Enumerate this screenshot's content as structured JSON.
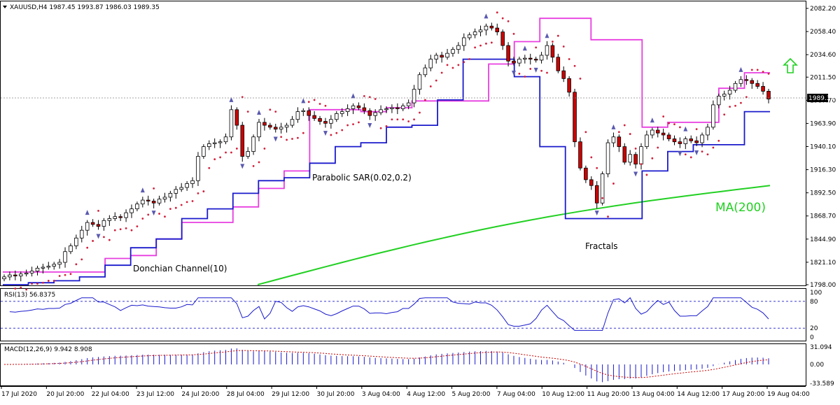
{
  "header": {
    "symbol_line": "XAUUSD,H4  1987.45 1993.87 1986.03 1989.35"
  },
  "colors": {
    "donchian_upper": "#e83ee0",
    "donchian_lower": "#1a1acc",
    "sar": "#d2203c",
    "ma": "#22d022",
    "bull": "#ffffff",
    "bear": "#cc0000",
    "wick": "#000000",
    "fractal": "#5a5ab0",
    "arrow": "#22d022",
    "rsi": "#1a1acc",
    "rsi_levels": "#1a1acc",
    "macd_hist": "#1a1acc",
    "macd_signal": "#cc0000"
  },
  "annotations": {
    "donchian": "Donchian Channel(10)",
    "sar": "Parabolic SAR(0.02,0.2)",
    "fractals": "Fractals",
    "ma": "MA(200)"
  },
  "chart_data": [
    {
      "type": "candlestick",
      "panel": "price",
      "price_ticks": [
        "2082.20",
        "2058.40",
        "2034.60",
        "2011.50",
        "1987.70",
        "1963.90",
        "1940.10",
        "1916.30",
        "1892.50",
        "1868.70",
        "1844.90",
        "1821.10",
        "1798.00"
      ],
      "ylim": [
        1798,
        2082.2
      ],
      "current_price": "1989.35",
      "x_ticks": [
        "17 Jul 2020",
        "20 Jul 20:00",
        "22 Jul 04:00",
        "23 Jul 12:00",
        "24 Jul 20:00",
        "28 Jul 04:00",
        "29 Jul 12:00",
        "30 Jul 20:00",
        "3 Aug 04:00",
        "4 Aug 12:00",
        "5 Aug 20:00",
        "7 Aug 04:00",
        "10 Aug 12:00",
        "11 Aug 20:00",
        "13 Aug 04:00",
        "14 Aug 12:00",
        "17 Aug 20:00",
        "19 Aug 04:00"
      ],
      "closes": [
        1806,
        1808,
        1807,
        1809,
        1810,
        1812,
        1815,
        1816,
        1817,
        1819,
        1821,
        1832,
        1838,
        1846,
        1854,
        1862,
        1860,
        1858,
        1864,
        1866,
        1868,
        1867,
        1872,
        1876,
        1881,
        1885,
        1884,
        1882,
        1886,
        1888,
        1892,
        1896,
        1898,
        1902,
        1905,
        1930,
        1940,
        1943,
        1944,
        1945,
        1950,
        1978,
        1962,
        1930,
        1935,
        1950,
        1965,
        1962,
        1960,
        1958,
        1960,
        1962,
        1968,
        1976,
        1977,
        1972,
        1969,
        1966,
        1964,
        1968,
        1974,
        1976,
        1979,
        1982,
        1980,
        1977,
        1972,
        1975,
        1978,
        1979,
        1980,
        1979,
        1982,
        1985,
        1999,
        2014,
        2021,
        2030,
        2034,
        2032,
        2036,
        2040,
        2044,
        2052,
        2055,
        2058,
        2060,
        2064,
        2062,
        2058,
        2044,
        2028,
        2026,
        2030,
        2031,
        2030,
        2029,
        2034,
        2044,
        2032,
        2018,
        2010,
        1996,
        1945,
        1918,
        1906,
        1900,
        1882,
        1912,
        1944,
        1950,
        1940,
        1924,
        1932,
        1922,
        1940,
        1952,
        1957,
        1954,
        1952,
        1948,
        1945,
        1943,
        1948,
        1946,
        1944,
        1952,
        1960,
        1983,
        1992,
        1994,
        1998,
        2005,
        2009,
        2008,
        2005,
        2002,
        1997,
        1989
      ],
      "ma_200": {
        "from": 1798,
        "to": 1900
      },
      "donchian_upper": [
        1811,
        1811,
        1811,
        1811,
        1825,
        1828,
        1845,
        1862,
        1862,
        1878,
        1897,
        1915,
        1978,
        1978,
        1976,
        1980,
        1987,
        1987,
        1987,
        2025,
        2048,
        2072,
        2072,
        2050,
        2050,
        1960,
        1965,
        1965,
        2000,
        2016
      ],
      "donchian_lower": [
        1798,
        1800,
        1802,
        1806,
        1818,
        1836,
        1845,
        1866,
        1876,
        1892,
        1905,
        1908,
        1923,
        1940,
        1944,
        1960,
        1962,
        1988,
        2030,
        2030,
        2012,
        1940,
        1866,
        1866,
        1866,
        1915,
        1935,
        1942,
        1942,
        1976
      ],
      "rsi": {
        "label": "RSI(13) 56.8375",
        "levels": [
          80,
          20
        ],
        "scale_ticks": [
          "100",
          "80",
          "20",
          "0"
        ],
        "value": 56.8375
      },
      "macd": {
        "label": "MACD(12,26,9) 9.942 8.908",
        "scale_ticks": [
          "31.094",
          "0.00",
          "-33.589"
        ],
        "value": 9.942,
        "signal": 8.908
      }
    }
  ]
}
